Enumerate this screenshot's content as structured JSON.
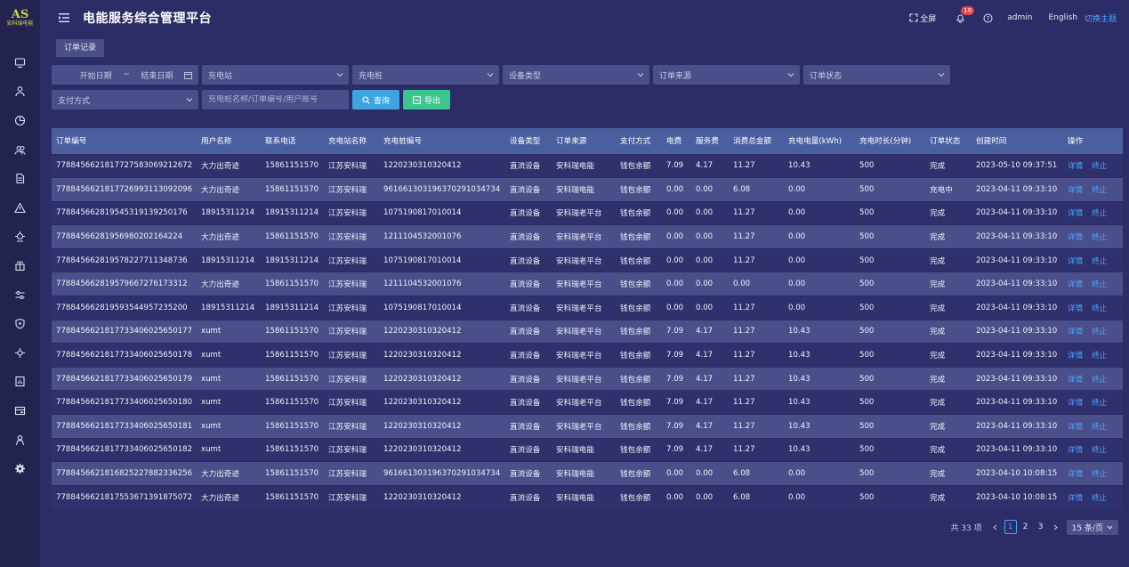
{
  "app": {
    "logo_text": "AS",
    "logo_sub": "安科瑞电能",
    "title": "电能服务综合管理平台"
  },
  "header": {
    "fullscreen_label": "全屏",
    "notification_count": "16",
    "user": "admin",
    "language": "English",
    "theme_switch": "切换主题"
  },
  "sidebar": {
    "items": [
      {
        "icon": "monitor-icon"
      },
      {
        "icon": "user-icon"
      },
      {
        "icon": "chart-pie-icon"
      },
      {
        "icon": "users-icon"
      },
      {
        "icon": "document-icon"
      },
      {
        "icon": "alert-icon"
      },
      {
        "icon": "charger-icon"
      },
      {
        "icon": "gift-icon"
      },
      {
        "icon": "sliders-icon"
      },
      {
        "icon": "shield-icon"
      },
      {
        "icon": "gear-network-icon"
      },
      {
        "icon": "report-icon"
      },
      {
        "icon": "card-icon"
      },
      {
        "icon": "person-icon"
      },
      {
        "icon": "settings-icon"
      }
    ]
  },
  "tabs": [
    {
      "label": "订单记录",
      "active": true
    }
  ],
  "filters": {
    "start_date": "开始日期",
    "date_sep": "~",
    "end_date": "结束日期",
    "station": "充电站",
    "pile": "充电桩",
    "device_type": "设备类型",
    "order_source": "订单来源",
    "order_status": "订单状态",
    "payment": "支付方式",
    "search_placeholder": "充电桩名称/订单编号/用户账号",
    "query_button": "查询",
    "export_button": "导出"
  },
  "table": {
    "columns": [
      "订单编号",
      "用户名称",
      "联系电话",
      "充电站名称",
      "充电桩编号",
      "设备类型",
      "订单来源",
      "支付方式",
      "电费",
      "服务费",
      "消费总金额",
      "充电电量(kWh)",
      "充电时长(分钟)",
      "订单状态",
      "创建时间",
      "操作"
    ],
    "action_detail": "详情",
    "action_stop": "终止",
    "rows": [
      [
        "778845662181772758306921267​2",
        "大力出奇迹",
        "15861151570",
        "江苏安科瑞",
        "1220230310320412",
        "直流设备",
        "安科瑞电能",
        "钱包余额",
        "7.09",
        "4.17",
        "11.27",
        "10.43",
        "500",
        "完成",
        "2023-05-10 09:37:51"
      ],
      [
        "7788456621817726993113092096",
        "大力出奇迹",
        "15861151570",
        "江苏安科瑞",
        "961661303196370291034734",
        "直流设备",
        "安科瑞电能",
        "钱包余额",
        "0.00",
        "0.00",
        "6.08",
        "0.00",
        "500",
        "充电中",
        "2023-04-11 09:33:10"
      ],
      [
        "7788456628195453191392501​76",
        "18915311214",
        "18915311214",
        "江苏安科瑞",
        "1075190817010014",
        "直流设备",
        "安科瑞老平台",
        "钱包余额",
        "0.00",
        "0.00",
        "11.27",
        "0.00",
        "500",
        "完成",
        "2023-04-11 09:33:10"
      ],
      [
        "7788456628195698020216422​4",
        "大力出奇迹",
        "15861151570",
        "江苏安科瑞",
        "1211104532001076",
        "直流设备",
        "安科瑞老平台",
        "钱包余额",
        "0.00",
        "0.00",
        "11.27",
        "0.00",
        "500",
        "完成",
        "2023-04-11 09:33:10"
      ],
      [
        "7788456628195782277113487​36",
        "18915311214",
        "18915311214",
        "江苏安科瑞",
        "1075190817010014",
        "直流设备",
        "安科瑞老平台",
        "钱包余额",
        "0.00",
        "0.00",
        "11.27",
        "0.00",
        "500",
        "完成",
        "2023-04-11 09:33:10"
      ],
      [
        "7788456628195796672761733​12",
        "大力出奇迹",
        "15861151570",
        "江苏安科瑞",
        "1211104532001076",
        "直流设备",
        "安科瑞老平台",
        "钱包余额",
        "0.00",
        "0.00",
        "0.00",
        "0.00",
        "500",
        "完成",
        "2023-04-11 09:33:10"
      ],
      [
        "7788456628195935449572352​00",
        "18915311214",
        "18915311214",
        "江苏安科瑞",
        "1075190817010014",
        "直流设备",
        "安科瑞老平台",
        "钱包余额",
        "0.00",
        "0.00",
        "11.27",
        "0.00",
        "500",
        "完成",
        "2023-04-11 09:33:10"
      ],
      [
        "7788456621817733406025650177",
        "xumt",
        "15861151570",
        "江苏安科瑞",
        "1220230310320412",
        "直流设备",
        "安科瑞老平台",
        "钱包余额",
        "7.09",
        "4.17",
        "11.27",
        "10.43",
        "500",
        "完成",
        "2023-04-11 09:33:10"
      ],
      [
        "7788456621817733406025650178",
        "xumt",
        "15861151570",
        "江苏安科瑞",
        "1220230310320412",
        "直流设备",
        "安科瑞老平台",
        "钱包余额",
        "7.09",
        "4.17",
        "11.27",
        "10.43",
        "500",
        "完成",
        "2023-04-11 09:33:10"
      ],
      [
        "7788456621817733406025650179",
        "xumt",
        "15861151570",
        "江苏安科瑞",
        "1220230310320412",
        "直流设备",
        "安科瑞老平台",
        "钱包余额",
        "7.09",
        "4.17",
        "11.27",
        "10.43",
        "500",
        "完成",
        "2023-04-11 09:33:10"
      ],
      [
        "7788456621817733406025650180",
        "xumt",
        "15861151570",
        "江苏安科瑞",
        "1220230310320412",
        "直流设备",
        "安科瑞老平台",
        "钱包余额",
        "7.09",
        "4.17",
        "11.27",
        "10.43",
        "500",
        "完成",
        "2023-04-11 09:33:10"
      ],
      [
        "7788456621817733406025650181",
        "xumt",
        "15861151570",
        "江苏安科瑞",
        "1220230310320412",
        "直流设备",
        "安科瑞老平台",
        "钱包余额",
        "7.09",
        "4.17",
        "11.27",
        "10.43",
        "500",
        "完成",
        "2023-04-11 09:33:10"
      ],
      [
        "7788456621817733406025650182",
        "xumt",
        "15861151570",
        "江苏安科瑞",
        "1220230310320412",
        "直流设备",
        "安科瑞电能",
        "钱包余额",
        "7.09",
        "4.17",
        "11.27",
        "10.43",
        "500",
        "完成",
        "2023-04-11 09:33:10"
      ],
      [
        "7788456621816825227882336256",
        "大力出奇迹",
        "15861151570",
        "江苏安科瑞",
        "961661303196370291034734",
        "直流设备",
        "安科瑞电能",
        "钱包余额",
        "0.00",
        "0.00",
        "6.08",
        "0.00",
        "500",
        "完成",
        "2023-04-10 10:08:15"
      ],
      [
        "7788456621817553671391875072",
        "大力出奇迹",
        "15861151570",
        "江苏安科瑞",
        "1220230310320412",
        "直流设备",
        "安科瑞电能",
        "钱包余额",
        "0.00",
        "0.00",
        "6.08",
        "0.00",
        "500",
        "完成",
        "2023-04-10 10:08:15"
      ]
    ]
  },
  "pagination": {
    "total": "共 33 项",
    "pages": [
      "1",
      "2",
      "3"
    ],
    "current": "1",
    "page_size": "15 条/页"
  }
}
